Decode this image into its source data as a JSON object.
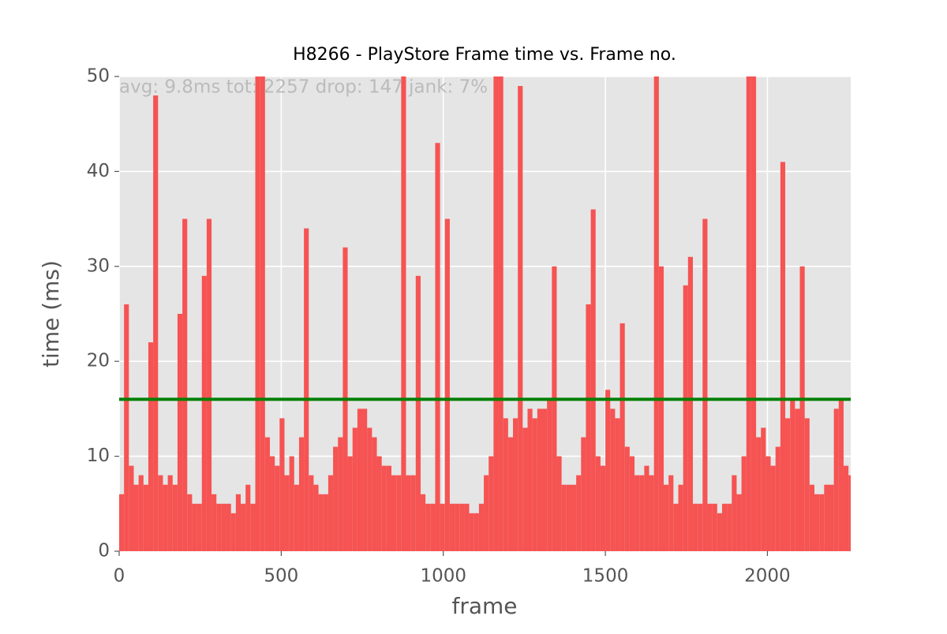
{
  "chart_data": {
    "type": "bar",
    "title": "H8266 - PlayStore Frame time vs. Frame no.",
    "annotation": "avg: 9.8ms tot: 2257 drop: 147 jank: 7%",
    "x_label": "frame",
    "y_label": "time (ms)",
    "color": "#f65353",
    "grid": true,
    "xlim": [
      0,
      2257
    ],
    "ylim": [
      0,
      50
    ],
    "xticks": [
      0,
      500,
      1000,
      1500,
      2000
    ],
    "yticks": [
      0,
      10,
      20,
      30,
      40,
      50
    ],
    "reference_line": {
      "value": 16,
      "color": "#007f00"
    },
    "x": [
      0,
      15,
      30,
      45,
      60,
      75,
      90,
      105,
      120,
      135,
      150,
      165,
      180,
      195,
      210,
      225,
      240,
      255,
      270,
      285,
      300,
      315,
      330,
      345,
      360,
      375,
      390,
      405,
      420,
      435,
      450,
      465,
      480,
      495,
      510,
      525,
      540,
      555,
      570,
      585,
      600,
      615,
      630,
      645,
      660,
      675,
      690,
      705,
      720,
      735,
      750,
      765,
      780,
      795,
      810,
      825,
      840,
      855,
      870,
      885,
      900,
      915,
      930,
      945,
      960,
      975,
      990,
      1005,
      1020,
      1035,
      1050,
      1065,
      1080,
      1095,
      1110,
      1125,
      1140,
      1155,
      1170,
      1185,
      1200,
      1215,
      1230,
      1245,
      1260,
      1275,
      1290,
      1305,
      1320,
      1335,
      1350,
      1365,
      1380,
      1395,
      1410,
      1425,
      1440,
      1455,
      1470,
      1485,
      1500,
      1515,
      1530,
      1545,
      1560,
      1575,
      1590,
      1605,
      1620,
      1635,
      1650,
      1665,
      1680,
      1695,
      1710,
      1725,
      1740,
      1755,
      1770,
      1785,
      1800,
      1815,
      1830,
      1845,
      1860,
      1875,
      1890,
      1905,
      1920,
      1935,
      1950,
      1965,
      1980,
      1995,
      2010,
      2025,
      2040,
      2055,
      2070,
      2085,
      2100,
      2115,
      2130,
      2145,
      2160,
      2175,
      2190,
      2205,
      2220,
      2235,
      2250
    ],
    "values": [
      6,
      26,
      9,
      7,
      8,
      7,
      22,
      48,
      8,
      7,
      8,
      7,
      25,
      35,
      6,
      5,
      5,
      29,
      35,
      6,
      5,
      5,
      5,
      4,
      6,
      5,
      7,
      5,
      50,
      50,
      12,
      10,
      9,
      14,
      8,
      10,
      7,
      12,
      34,
      8,
      7,
      6,
      6,
      8,
      11,
      12,
      32,
      10,
      13,
      15,
      15,
      13,
      12,
      10,
      9,
      9,
      8,
      8,
      50,
      8,
      8,
      29,
      6,
      5,
      5,
      43,
      5,
      35,
      5,
      5,
      5,
      5,
      4,
      4,
      5,
      8,
      10,
      50,
      50,
      14,
      12,
      14,
      49,
      13,
      15,
      14,
      15,
      15,
      16,
      30,
      10,
      7,
      7,
      7,
      8,
      12,
      26,
      36,
      10,
      9,
      17,
      15,
      14,
      24,
      11,
      10,
      8,
      8,
      9,
      8,
      50,
      30,
      7,
      8,
      5,
      7,
      28,
      31,
      5,
      5,
      35,
      5,
      5,
      4,
      5,
      5,
      8,
      6,
      10,
      50,
      50,
      12,
      13,
      10,
      9,
      11,
      41,
      14,
      16,
      15,
      30,
      14,
      7,
      6,
      6,
      7,
      7,
      15,
      16,
      9,
      8
    ]
  }
}
